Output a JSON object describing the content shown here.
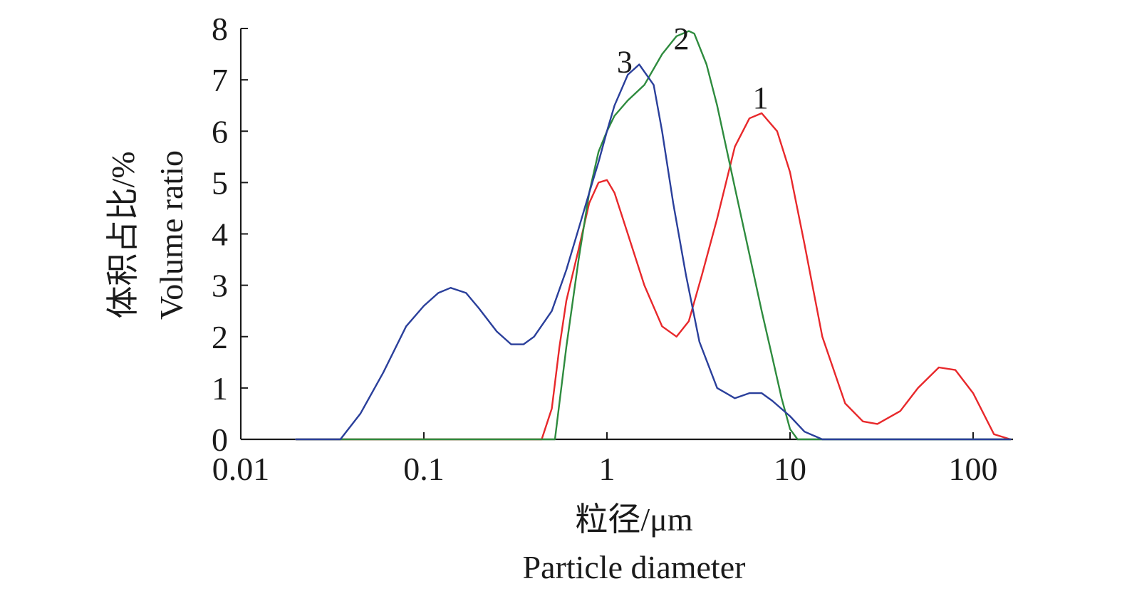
{
  "chart_data": {
    "type": "line",
    "x_scale": "log",
    "xlim": [
      0.01,
      160
    ],
    "ylim": [
      0,
      8
    ],
    "x_ticks": [
      0.01,
      0.1,
      1,
      10,
      100
    ],
    "x_tick_labels": [
      "0.01",
      "0.1",
      "1",
      "10",
      "100"
    ],
    "y_ticks": [
      0,
      1,
      2,
      3,
      4,
      5,
      6,
      7,
      8
    ],
    "y_tick_labels": [
      "0",
      "1",
      "2",
      "3",
      "4",
      "5",
      "6",
      "7",
      "8"
    ],
    "xlabel_zh": "粒径/μm",
    "xlabel_en": "Particle diameter",
    "ylabel_zh": "体积占比/%",
    "ylabel_en": "Volume ratio",
    "grid": false,
    "legend": "none",
    "series": [
      {
        "name": "1",
        "color": "#e8282b",
        "label_x": 6.9,
        "label_y": 6.45,
        "x": [
          0.02,
          0.44,
          0.5,
          0.55,
          0.6,
          0.7,
          0.8,
          0.9,
          1.0,
          1.1,
          1.3,
          1.6,
          2.0,
          2.4,
          2.8,
          3.3,
          4.0,
          5.0,
          6.0,
          7.0,
          8.5,
          10.0,
          12.0,
          15.0,
          20.0,
          25.0,
          30.0,
          40.0,
          50.0,
          65.0,
          80.0,
          100.0,
          130.0,
          160.0
        ],
        "y": [
          0,
          0,
          0.6,
          1.8,
          2.7,
          3.7,
          4.6,
          5.0,
          5.05,
          4.8,
          4.0,
          3.0,
          2.2,
          2.0,
          2.3,
          3.2,
          4.3,
          5.7,
          6.25,
          6.35,
          6.0,
          5.2,
          3.8,
          2.0,
          0.7,
          0.35,
          0.3,
          0.55,
          1.0,
          1.4,
          1.35,
          0.9,
          0.1,
          0
        ]
      },
      {
        "name": "2",
        "color": "#2e8b3e",
        "label_x": 2.55,
        "label_y": 7.6,
        "x": [
          0.02,
          0.52,
          0.6,
          0.7,
          0.8,
          0.9,
          1.0,
          1.1,
          1.3,
          1.6,
          2.0,
          2.4,
          2.8,
          3.0,
          3.5,
          4.0,
          5.0,
          6.0,
          7.0,
          8.0,
          9.0,
          10.0,
          11.0,
          13.0,
          160.0
        ],
        "y": [
          0,
          0,
          1.8,
          3.5,
          4.8,
          5.6,
          6.0,
          6.3,
          6.6,
          6.9,
          7.5,
          7.85,
          7.95,
          7.9,
          7.3,
          6.5,
          4.9,
          3.6,
          2.5,
          1.6,
          0.8,
          0.2,
          0,
          0,
          0
        ]
      },
      {
        "name": "3",
        "color": "#2a3f9b",
        "label_x": 1.25,
        "label_y": 7.15,
        "x": [
          0.02,
          0.035,
          0.045,
          0.06,
          0.08,
          0.1,
          0.12,
          0.14,
          0.17,
          0.2,
          0.25,
          0.3,
          0.35,
          0.4,
          0.5,
          0.6,
          0.7,
          0.8,
          0.9,
          1.0,
          1.1,
          1.3,
          1.5,
          1.8,
          2.0,
          2.3,
          2.7,
          3.2,
          4.0,
          5.0,
          6.0,
          7.0,
          8.0,
          10.0,
          12.0,
          15.0,
          160.0
        ],
        "y": [
          0,
          0,
          0.5,
          1.3,
          2.2,
          2.6,
          2.85,
          2.95,
          2.85,
          2.55,
          2.1,
          1.85,
          1.85,
          2.0,
          2.5,
          3.3,
          4.1,
          4.8,
          5.4,
          6.0,
          6.5,
          7.1,
          7.3,
          6.9,
          6.0,
          4.6,
          3.2,
          1.9,
          1.0,
          0.8,
          0.9,
          0.9,
          0.75,
          0.45,
          0.15,
          0,
          0
        ]
      }
    ]
  }
}
